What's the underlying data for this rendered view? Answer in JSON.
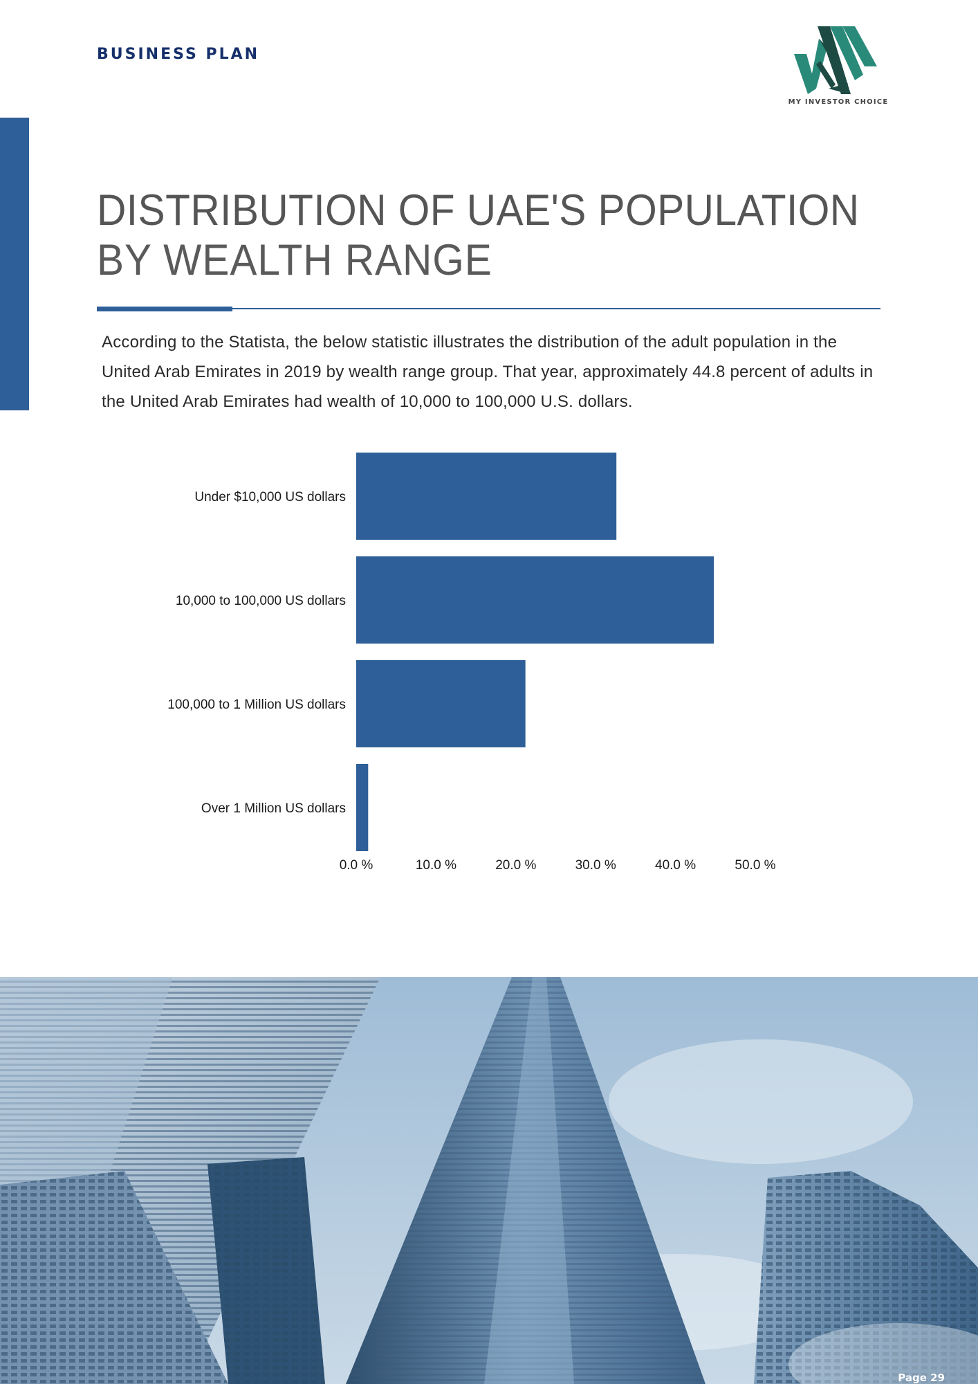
{
  "header": {
    "label": "BUSINESS PLAN",
    "logo_text": "MY INVESTOR CHOICE"
  },
  "title": {
    "line1": "DISTRIBUTION OF UAE'S POPULATION",
    "line2": "BY WEALTH RANGE"
  },
  "body": {
    "paragraph": "According to the Statista, the below statistic illustrates the distribution of the adult population in the United Arab Emirates in 2019 by wealth range group. That year, approximately 44.8 percent of adults in the United Arab Emirates had wealth of 10,000 to 100,000 U.S. dollars."
  },
  "chart_data": {
    "type": "bar",
    "orientation": "horizontal",
    "categories": [
      "Under $10,000 US dollars",
      "10,000 to 100,000 US dollars",
      "100,000 to 1 Million US dollars",
      "Over 1 Million US dollars"
    ],
    "values": [
      32.6,
      44.8,
      21.2,
      1.5
    ],
    "xlim": [
      0,
      50
    ],
    "xticks": [
      "0.0 %",
      "10.0 %",
      "20.0 %",
      "30.0 %",
      "40.0 %",
      "50.0 %"
    ],
    "title": "",
    "xlabel": "",
    "ylabel": "",
    "grid": false,
    "bar_color": "#2e5f98"
  },
  "footer": {
    "page": "Page 29"
  },
  "colors": {
    "accent": "#2e5f98",
    "header_navy": "#16306b",
    "logo_teal": "#2a8a7a",
    "logo_dark": "#1e4a44"
  },
  "photo": {
    "subject": "skyscrapers-icon"
  }
}
